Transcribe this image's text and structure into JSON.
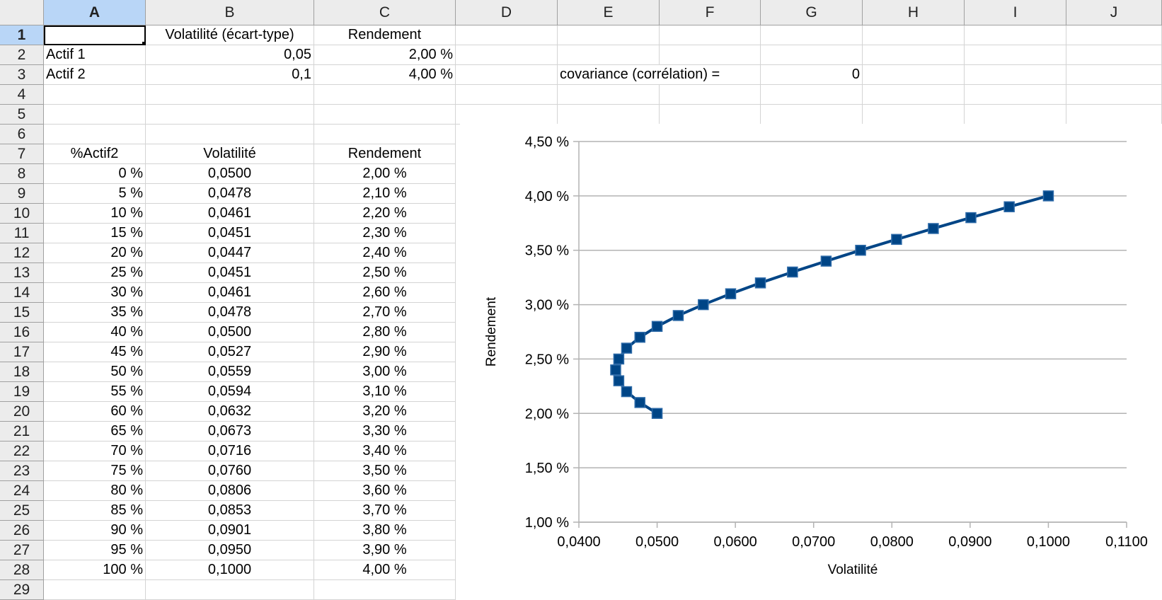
{
  "columns": [
    "A",
    "B",
    "C",
    "D",
    "E",
    "F",
    "G",
    "H",
    "I",
    "J"
  ],
  "active_column": "A",
  "active_row": "1",
  "rows": [
    "1",
    "2",
    "3",
    "4",
    "5",
    "6",
    "7",
    "8",
    "9",
    "10",
    "11",
    "12",
    "13",
    "14",
    "15",
    "16",
    "17",
    "18",
    "19",
    "20",
    "21",
    "22",
    "23",
    "24",
    "25",
    "26",
    "27",
    "28",
    "29"
  ],
  "top_table": {
    "header": [
      "",
      "Volatilité (écart-type)",
      "Rendement"
    ],
    "rows": [
      [
        "Actif 1",
        "0,05",
        "2,00 %"
      ],
      [
        "Actif 2",
        "0,1",
        "4,00 %"
      ]
    ]
  },
  "covariance": {
    "label": "covariance (corrélation) =",
    "value": "0"
  },
  "portfolio_table": {
    "header": [
      "%Actif2",
      "Volatilité",
      "Rendement"
    ],
    "rows": [
      [
        "0 %",
        "0,0500",
        "2,00 %"
      ],
      [
        "5 %",
        "0,0478",
        "2,10 %"
      ],
      [
        "10 %",
        "0,0461",
        "2,20 %"
      ],
      [
        "15 %",
        "0,0451",
        "2,30 %"
      ],
      [
        "20 %",
        "0,0447",
        "2,40 %"
      ],
      [
        "25 %",
        "0,0451",
        "2,50 %"
      ],
      [
        "30 %",
        "0,0461",
        "2,60 %"
      ],
      [
        "35 %",
        "0,0478",
        "2,70 %"
      ],
      [
        "40 %",
        "0,0500",
        "2,80 %"
      ],
      [
        "45 %",
        "0,0527",
        "2,90 %"
      ],
      [
        "50 %",
        "0,0559",
        "3,00 %"
      ],
      [
        "55 %",
        "0,0594",
        "3,10 %"
      ],
      [
        "60 %",
        "0,0632",
        "3,20 %"
      ],
      [
        "65 %",
        "0,0673",
        "3,30 %"
      ],
      [
        "70 %",
        "0,0716",
        "3,40 %"
      ],
      [
        "75 %",
        "0,0760",
        "3,50 %"
      ],
      [
        "80 %",
        "0,0806",
        "3,60 %"
      ],
      [
        "85 %",
        "0,0853",
        "3,70 %"
      ],
      [
        "90 %",
        "0,0901",
        "3,80 %"
      ],
      [
        "95 %",
        "0,0950",
        "3,90 %"
      ],
      [
        "100 %",
        "0,1000",
        "4,00 %"
      ]
    ]
  },
  "colors": {
    "series": "#004586",
    "grid": "#b3b3b3",
    "header_bg": "#ececec",
    "header_active": "#b9d6f7"
  },
  "chart_data": {
    "type": "scatter",
    "title": "",
    "xlabel": "Volatilité",
    "ylabel": "Rendement",
    "xlim": [
      0.04,
      0.11
    ],
    "ylim": [
      1.0,
      4.5
    ],
    "x_ticks": [
      "0,0400",
      "0,0500",
      "0,0600",
      "0,0700",
      "0,0800",
      "0,0900",
      "0,1000",
      "0,1100"
    ],
    "y_ticks": [
      "1,00 %",
      "1,50 %",
      "2,00 %",
      "2,50 %",
      "3,00 %",
      "3,50 %",
      "4,00 %",
      "4,50 %"
    ],
    "grid": true,
    "legend": "none",
    "series": [
      {
        "x": [
          0.05,
          0.0478,
          0.0461,
          0.0451,
          0.0447,
          0.0451,
          0.0461,
          0.0478,
          0.05,
          0.0527,
          0.0559,
          0.0594,
          0.0632,
          0.0673,
          0.0716,
          0.076,
          0.0806,
          0.0853,
          0.0901,
          0.095,
          0.1
        ],
        "y": [
          2.0,
          2.1,
          2.2,
          2.3,
          2.4,
          2.5,
          2.6,
          2.7,
          2.8,
          2.9,
          3.0,
          3.1,
          3.2,
          3.3,
          3.4,
          3.5,
          3.6,
          3.7,
          3.8,
          3.9,
          4.0
        ]
      }
    ]
  }
}
